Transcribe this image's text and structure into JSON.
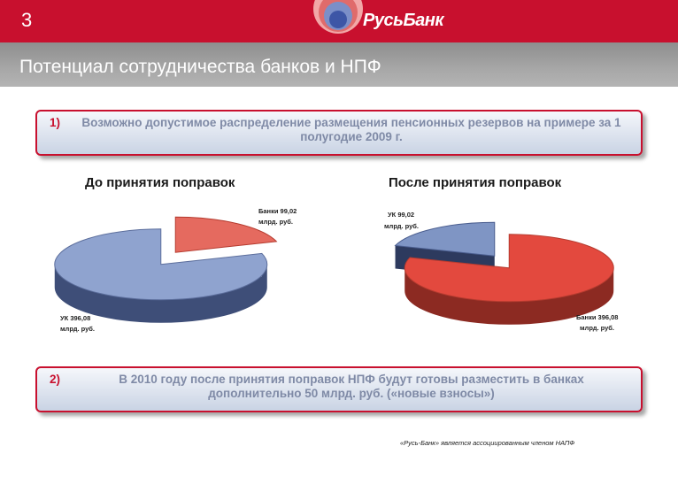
{
  "slide_number": "3",
  "brand": "РусьБанк",
  "title": "Потенциал сотрудничества банков и НПФ",
  "callout1": {
    "number": "1)",
    "text": "Возможно допустимое распределение размещения пенсионных резервов на примере за 1 полугодие 2009 г."
  },
  "callout2": {
    "number": "2)",
    "text": "В 2010 году после принятия поправок НПФ будут готовы разместить в банках дополнительно 50 млрд. руб. («новые взносы»)"
  },
  "footnote": "«Русь-Банк» является ассоциированным членом НАПФ",
  "colors": {
    "red": "#e0443a",
    "blue": "#7f95c4",
    "brand_red": "#c8102e"
  },
  "chart_data": [
    {
      "type": "pie",
      "title": "До принятия поправок",
      "unit": "млрд. руб.",
      "slices": [
        {
          "name": "Банки",
          "value": 99.02,
          "label_line1": "Банки 99,02",
          "label_line2": "млрд. руб.",
          "color": "#e0443a"
        },
        {
          "name": "УК",
          "value": 396.08,
          "label_line1": "УК 396,08",
          "label_line2": "млрд. руб.",
          "color": "#7f95c4"
        }
      ]
    },
    {
      "type": "pie",
      "title": "После принятия поправок",
      "unit": "млрд. руб.",
      "slices": [
        {
          "name": "УК",
          "value": 99.02,
          "label_line1": "УК 99,02",
          "label_line2": "млрд. руб.",
          "color": "#7f95c4"
        },
        {
          "name": "Банки",
          "value": 396.08,
          "label_line1": "Банки 396,08",
          "label_line2": "млрд. руб.",
          "color": "#e0443a"
        }
      ]
    }
  ]
}
